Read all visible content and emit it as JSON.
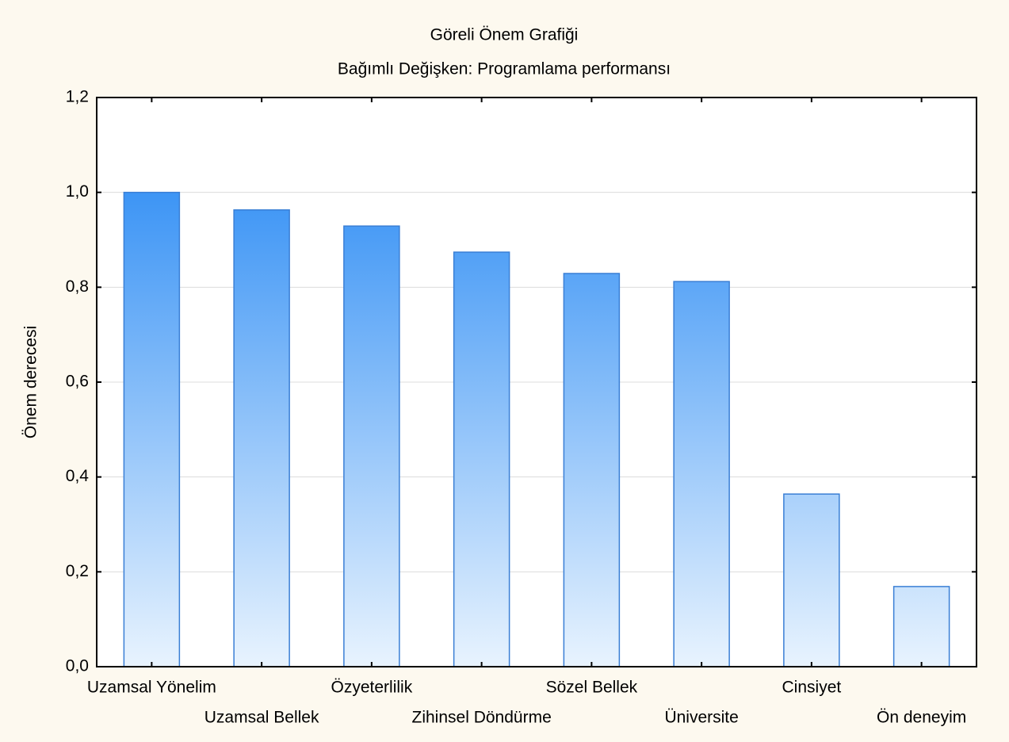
{
  "chart_data": {
    "type": "bar",
    "title": "Göreli Önem Grafiği",
    "subtitle": "Bağımlı Değişken: Programlama performansı",
    "y_label": "Önem derecesi",
    "categories": [
      "Uzamsal Yönelim",
      "Uzamsal Bellek",
      "Özyeterlilik",
      "Zihinsel Döndürme",
      "Sözel Bellek",
      "Üniversite",
      "Cinsiyet",
      "Ön deneyim"
    ],
    "values": [
      1.0,
      0.963,
      0.929,
      0.874,
      0.829,
      0.812,
      0.364,
      0.169
    ],
    "color": "#3d95f5",
    "ylim": [
      0,
      1.2
    ],
    "yticks": [
      {
        "value": 0,
        "label": "0,0"
      },
      {
        "value": 0.2,
        "label": "0,2"
      },
      {
        "value": 0.4,
        "label": "0,4"
      },
      {
        "value": 0.6,
        "label": "0,6"
      },
      {
        "value": 0.8,
        "label": "0,8"
      },
      {
        "value": 1.0,
        "label": "1,0"
      },
      {
        "value": 1.2,
        "label": "1,2"
      }
    ],
    "grid": true
  }
}
